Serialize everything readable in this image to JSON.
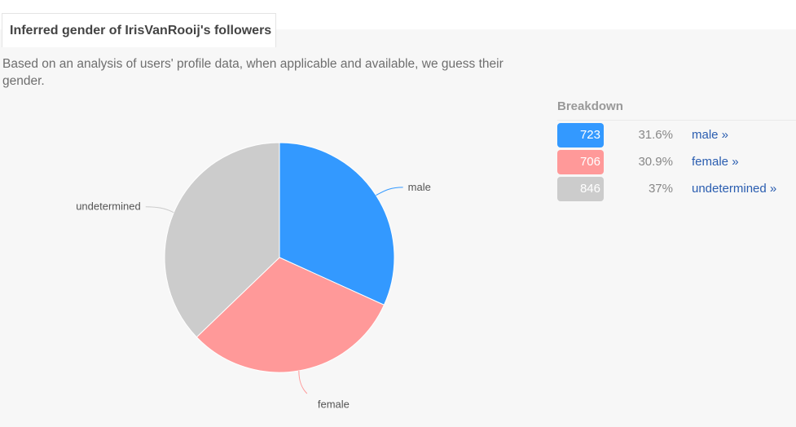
{
  "header": {
    "title": "Inferred gender of IrisVanRooij's followers",
    "description": "Based on an analysis of users' profile data, when applicable and available, we guess their gender."
  },
  "breakdown": {
    "heading": "Breakdown",
    "rows": [
      {
        "count": "723",
        "percent": "31.6%",
        "link": "male »",
        "color": "#3399ff"
      },
      {
        "count": "706",
        "percent": "30.9%",
        "link": "female »",
        "color": "#ff9999"
      },
      {
        "count": "846",
        "percent": "37%",
        "link": "undetermined »",
        "color": "#cccccc"
      }
    ]
  },
  "chart_data": {
    "type": "pie",
    "categories": [
      "male",
      "female",
      "undetermined"
    ],
    "values": [
      723,
      706,
      846
    ],
    "colors": [
      "#3399ff",
      "#ff9999",
      "#cccccc"
    ],
    "title": "Inferred gender of IrisVanRooij's followers"
  }
}
